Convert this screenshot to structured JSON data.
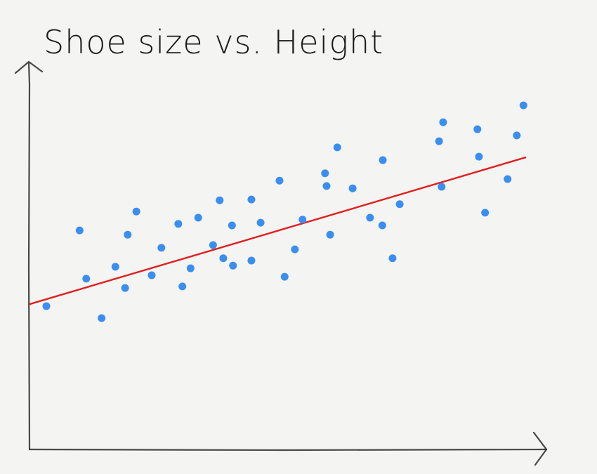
{
  "chart_data": {
    "type": "scatter",
    "title": "Shoe size vs. Height",
    "xlim": [
      0,
      100
    ],
    "ylim": [
      0,
      100
    ],
    "color": "#3a8ef0",
    "x": [
      3.3,
      9.8,
      11.1,
      14.1,
      16.8,
      18.7,
      19.2,
      20.9,
      23.9,
      25.8,
      29.1,
      29.9,
      31.5,
      33.0,
      35.9,
      37.2,
      37.9,
      39.6,
      39.8,
      43.4,
      43.4,
      45.2,
      48.9,
      49.9,
      51.9,
      53.4,
      57.8,
      58.1,
      58.8,
      60.2,
      63.2,
      66.6,
      69.0,
      69.1,
      71.0,
      72.4,
      80.1,
      80.9,
      80.6,
      87.6,
      87.9,
      89.1,
      93.5,
      95.3,
      96.6
    ],
    "values": [
      37.1,
      56.7,
      44.2,
      34.0,
      47.3,
      41.8,
      55.6,
      61.6,
      45.1,
      52.2,
      58.4,
      42.2,
      46.9,
      60.0,
      52.9,
      64.5,
      49.5,
      58.0,
      47.6,
      64.7,
      48.9,
      58.7,
      69.6,
      44.7,
      51.8,
      59.5,
      71.5,
      68.2,
      55.6,
      78.2,
      67.6,
      60.0,
      58.0,
      74.9,
      49.5,
      63.5,
      79.8,
      84.7,
      68.0,
      82.9,
      75.8,
      61.3,
      70.0,
      81.3,
      89.1
    ],
    "trend_line": {
      "x": [
        0,
        97
      ],
      "values": [
        37.6,
        75.6
      ],
      "color": "#e21e1e"
    }
  }
}
